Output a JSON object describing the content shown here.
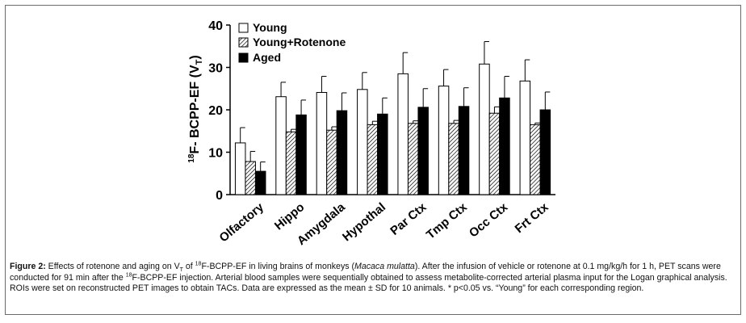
{
  "chart_data": {
    "type": "bar",
    "ylabel_parts": {
      "sup": "18",
      "pre": "F- BCPP-EF (V",
      "sub": "T",
      "post": ")"
    },
    "ylim": [
      0,
      40
    ],
    "yticks": [
      0,
      10,
      20,
      30,
      40
    ],
    "categories": [
      "Olfactory",
      "Hippo",
      "Amygdala",
      "Hypothal",
      "Par Ctx",
      "Tmp Ctx",
      "Occ Ctx",
      "Frt Ctx"
    ],
    "legend_position": "top-left",
    "series": [
      {
        "name": "Young",
        "pattern": "open",
        "values": [
          12.2,
          23.1,
          24.1,
          24.8,
          28.5,
          25.6,
          30.8,
          26.8
        ],
        "sd": [
          3.6,
          3.4,
          3.8,
          4.0,
          5.0,
          3.9,
          5.3,
          5.0
        ]
      },
      {
        "name": "Young+Rotenone",
        "pattern": "hatched",
        "values": [
          7.8,
          14.8,
          15.2,
          16.5,
          16.8,
          16.8,
          19.2,
          16.5
        ],
        "sd": [
          2.4,
          0.6,
          0.8,
          0.8,
          0.6,
          0.7,
          1.5,
          0.4
        ]
      },
      {
        "name": "Aged",
        "pattern": "solid",
        "values": [
          5.5,
          18.8,
          19.8,
          19.0,
          20.6,
          20.8,
          22.8,
          20.0
        ],
        "sd": [
          2.2,
          3.5,
          4.2,
          3.8,
          4.4,
          4.4,
          5.1,
          4.2
        ]
      }
    ]
  },
  "caption": {
    "label": "Figure 2:",
    "p1": " Effects of rotenone and aging on V",
    "p1_sub": "T",
    "p2": " of ",
    "p2_sup": "18",
    "p3": "F-BCPP-EF in living brains of monkeys (",
    "species": "Macaca mulatta",
    "p4": "). After the infusion of vehicle or rotenone at 0.1 mg/kg/h for 1 h, PET scans were conducted for 91 min after the ",
    "p4_sup": "18",
    "p5": "F-BCPP-EF injection. Arterial blood samples were sequentially obtained to assess metabolite-corrected arterial plasma input for the Logan graphical analysis. ROIs were set on reconstructed PET images to obtain TACs. Data are expressed as the mean ± SD for 10 animals. * p<0.05 vs. “Young” for each corresponding region."
  }
}
